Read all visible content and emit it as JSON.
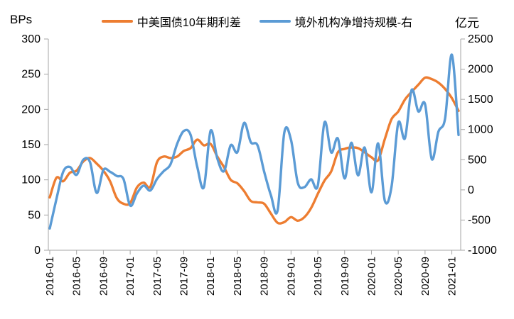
{
  "header": {
    "left_axis_unit": "BPs",
    "right_axis_unit": "亿元",
    "legend": [
      {
        "label": "中美国债10年期利差",
        "color": "#ED7D31"
      },
      {
        "label": "境外机构净增持规模-右",
        "color": "#5B9BD5"
      }
    ]
  },
  "chart_data": {
    "type": "line",
    "title": "",
    "smooth": true,
    "grid": false,
    "legend_position": "top",
    "x": [
      "2016-01",
      "2016-02",
      "2016-03",
      "2016-04",
      "2016-05",
      "2016-06",
      "2016-07",
      "2016-08",
      "2016-09",
      "2016-10",
      "2016-11",
      "2016-12",
      "2017-01",
      "2017-02",
      "2017-03",
      "2017-04",
      "2017-05",
      "2017-06",
      "2017-07",
      "2017-08",
      "2017-09",
      "2017-10",
      "2017-11",
      "2017-12",
      "2018-01",
      "2018-02",
      "2018-03",
      "2018-04",
      "2018-05",
      "2018-06",
      "2018-07",
      "2018-08",
      "2018-09",
      "2018-10",
      "2018-11",
      "2018-12",
      "2019-01",
      "2019-02",
      "2019-03",
      "2019-04",
      "2019-05",
      "2019-06",
      "2019-07",
      "2019-08",
      "2019-09",
      "2019-10",
      "2019-11",
      "2019-12",
      "2020-01",
      "2020-02",
      "2020-03",
      "2020-04",
      "2020-05",
      "2020-06",
      "2020-07",
      "2020-08",
      "2020-09",
      "2020-10",
      "2020-11",
      "2020-12",
      "2021-01",
      "2021-02"
    ],
    "x_tick_labels": [
      "2016-01",
      "2016-05",
      "2016-09",
      "2017-01",
      "2017-05",
      "2017-09",
      "2018-01",
      "2018-05",
      "2018-09",
      "2019-01",
      "2019-05",
      "2019-09",
      "2020-01",
      "2020-05",
      "2020-09",
      "2021-01"
    ],
    "series": [
      {
        "name": "中美国债10年期利差",
        "axis": "left",
        "unit": "BPs",
        "color": "#ED7D31",
        "values": [
          75,
          103,
          98,
          110,
          113,
          126,
          131,
          123,
          113,
          98,
          74,
          66,
          67,
          89,
          96,
          90,
          125,
          133,
          131,
          133,
          141,
          145,
          157,
          149,
          151,
          133,
          118,
          100,
          95,
          84,
          70,
          68,
          66,
          52,
          39,
          40,
          47,
          42,
          47,
          60,
          80,
          99,
          112,
          139,
          144,
          146,
          145,
          139,
          132,
          128,
          158,
          186,
          197,
          214,
          225,
          235,
          245,
          243,
          238,
          229,
          216,
          198
        ]
      },
      {
        "name": "境外机构净增持规模-右",
        "axis": "right",
        "unit": "亿元",
        "color": "#5B9BD5",
        "values": [
          -640,
          -150,
          300,
          380,
          250,
          500,
          460,
          -50,
          330,
          300,
          230,
          180,
          -260,
          -60,
          70,
          -10,
          180,
          310,
          420,
          760,
          975,
          915,
          385,
          45,
          980,
          520,
          310,
          740,
          625,
          1110,
          790,
          740,
          300,
          -90,
          -340,
          950,
          830,
          120,
          45,
          175,
          70,
          1120,
          620,
          850,
          190,
          780,
          240,
          700,
          -40,
          770,
          -180,
          50,
          1110,
          855,
          1655,
          1300,
          1420,
          510,
          965,
          1185,
          2240,
          910
        ]
      }
    ],
    "left_axis": {
      "label": "BPs",
      "min": 0,
      "max": 300,
      "step": 50,
      "ticks": [
        "0",
        "50",
        "100",
        "150",
        "200",
        "250",
        "300"
      ]
    },
    "right_axis": {
      "label": "亿元",
      "min": -1000,
      "max": 2500,
      "step": 500,
      "ticks": [
        "-1000",
        "-500",
        "0",
        "500",
        "1000",
        "1500",
        "2000",
        "2500"
      ]
    }
  },
  "style": {
    "axis_color": "#A6A6A6",
    "text_color": "#000000",
    "background": "#FFFFFF"
  }
}
